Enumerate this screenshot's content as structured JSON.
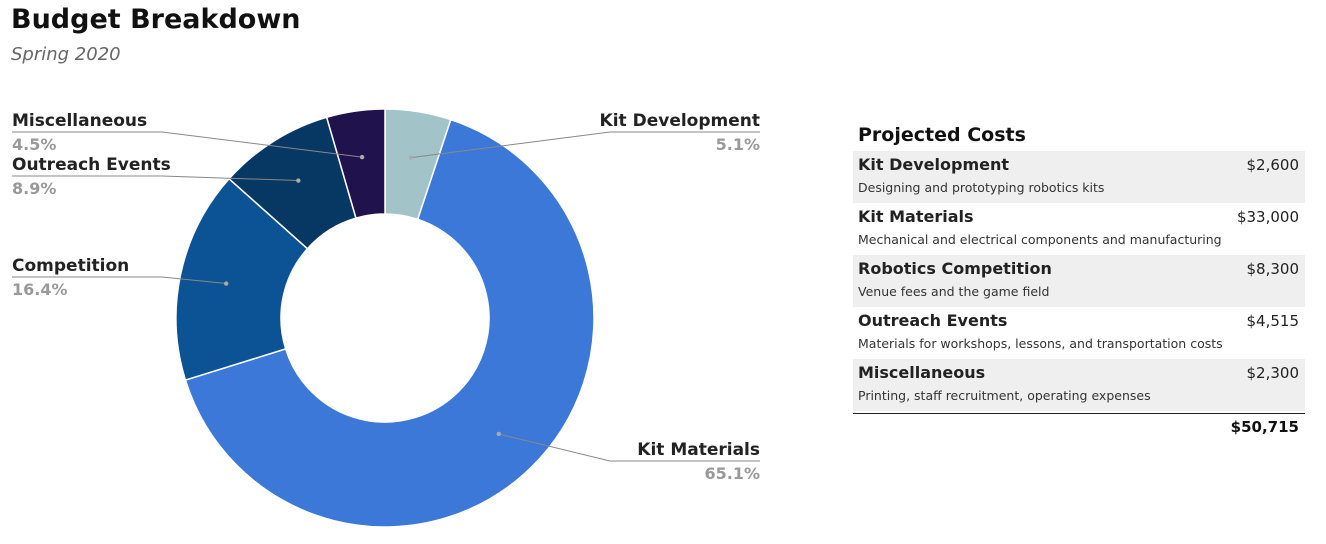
{
  "header": {
    "title": "Budget Breakdown",
    "subtitle": "Spring 2020"
  },
  "chart_data": {
    "type": "pie",
    "donut": true,
    "title": "Budget Breakdown",
    "subtitle": "Spring 2020",
    "slices": [
      {
        "label": "Kit Development",
        "value": 5.1,
        "display": "5.1%",
        "color": "#a2c4c9"
      },
      {
        "label": "Kit Materials",
        "value": 65.1,
        "display": "65.1%",
        "color": "#3c78d8"
      },
      {
        "label": "Competition",
        "value": 16.4,
        "display": "16.4%",
        "color": "#0b5394"
      },
      {
        "label": "Outreach Events",
        "value": 8.9,
        "display": "8.9%",
        "color": "#073763"
      },
      {
        "label": "Miscellaneous",
        "value": 4.5,
        "display": "4.5%",
        "color": "#20124d"
      }
    ]
  },
  "table": {
    "title": "Projected Costs",
    "rows": [
      {
        "label": "Kit Development",
        "desc": "Designing and prototyping robotics kits",
        "amount": "$2,600"
      },
      {
        "label": "Kit Materials",
        "desc": "Mechanical and electrical components and manufacturing",
        "amount": "$33,000"
      },
      {
        "label": "Robotics Competition",
        "desc": "Venue fees and the game field",
        "amount": "$8,300"
      },
      {
        "label": "Outreach Events",
        "desc": "Materials for workshops, lessons, and transportation costs",
        "amount": "$4,515"
      },
      {
        "label": "Miscellaneous",
        "desc": "Printing, staff recruitment, operating expenses",
        "amount": "$2,300"
      }
    ],
    "total": "$50,715"
  },
  "colors": {
    "label_text": "#222222",
    "percent_text": "#999999",
    "leader_line": "#888888"
  }
}
